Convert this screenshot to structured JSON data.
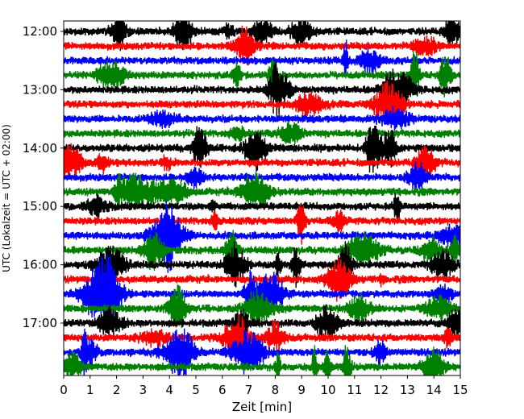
{
  "chart_data": {
    "type": "line",
    "title": "",
    "xlabel": "Zeit  [min]",
    "ylabel": "UTC (Lokalzeit = UTC + 02:00)",
    "xlim": [
      0,
      15
    ],
    "x_ticks": [
      "0",
      "1",
      "2",
      "3",
      "4",
      "5",
      "6",
      "7",
      "8",
      "9",
      "10",
      "11",
      "12",
      "13",
      "14",
      "15"
    ],
    "y_ticks": [
      "12:00",
      "13:00",
      "14:00",
      "15:00",
      "16:00",
      "17:00"
    ],
    "start_time": "12:00",
    "end_time": "18:00",
    "trace_interval_minutes": 15,
    "trace_colors": [
      "#000000",
      "#ff0000",
      "#0000ff",
      "#008000"
    ],
    "grid": false,
    "legend": "none"
  }
}
